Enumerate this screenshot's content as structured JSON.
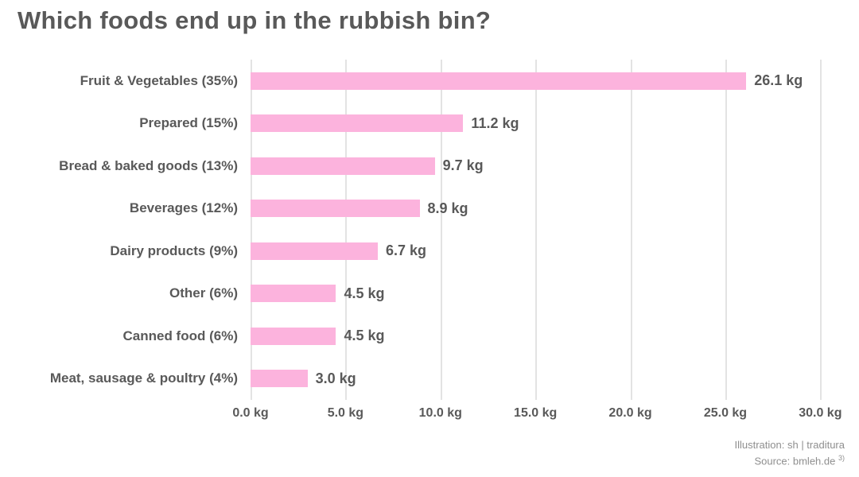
{
  "title": "Which foods end up in the rubbish bin?",
  "chart_data": {
    "type": "bar",
    "orientation": "horizontal",
    "title": "Which foods end up in the rubbish bin?",
    "categories": [
      "Fruit & Vegetables (35%)",
      "Prepared (15%)",
      "Bread & baked goods (13%)",
      "Beverages (12%)",
      "Dairy products (9%)",
      "Other (6%)",
      "Canned food (6%)",
      "Meat, sausage & poultry (4%)"
    ],
    "values": [
      26.1,
      11.2,
      9.7,
      8.9,
      6.7,
      4.5,
      4.5,
      3.0
    ],
    "value_labels": [
      "26.1 kg",
      "11.2 kg",
      "9.7 kg",
      "8.9 kg",
      "6.7 kg",
      "4.5 kg",
      "4.5 kg",
      "3.0 kg"
    ],
    "unit": "kg",
    "xlabel": "",
    "ylabel": "",
    "x_ticks": [
      0,
      5,
      10,
      15,
      20,
      25,
      30
    ],
    "x_tick_labels": [
      "0.0 kg",
      "5.0 kg",
      "10.0 kg",
      "15.0 kg",
      "20.0 kg",
      "25.0 kg",
      "30.0 kg"
    ],
    "xlim": [
      0,
      31.2
    ],
    "grid": true,
    "legend": false,
    "bar_color": "#fcb3dd",
    "text_color": "#595959",
    "grid_color": "#e3e3e3"
  },
  "footer": {
    "illustration": "Illustration: sh | traditura",
    "source_text": "Source: bmleh.de",
    "source_sup": "3)"
  }
}
